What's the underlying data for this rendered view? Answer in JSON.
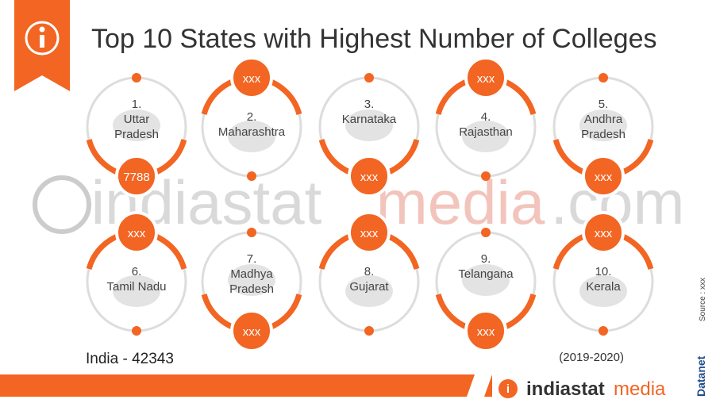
{
  "title": "Top 10 States with Highest Number of Colleges",
  "states": [
    {
      "rank": "1.",
      "name": "Uttar Pradesh",
      "value": "7788"
    },
    {
      "rank": "2.",
      "name": "Maharashtra",
      "value": "xxx"
    },
    {
      "rank": "3.",
      "name": "Karnataka",
      "value": "xxx"
    },
    {
      "rank": "4.",
      "name": "Rajasthan",
      "value": "xxx"
    },
    {
      "rank": "5.",
      "name": "Andhra Pradesh",
      "value": "xxx"
    },
    {
      "rank": "6.",
      "name": "Tamil Nadu",
      "value": "xxx"
    },
    {
      "rank": "7.",
      "name": "Madhya Pradesh",
      "value": "xxx"
    },
    {
      "rank": "8.",
      "name": "Gujarat",
      "value": "xxx"
    },
    {
      "rank": "9.",
      "name": "Telangana",
      "value": "xxx"
    },
    {
      "rank": "10.",
      "name": "Kerala",
      "value": "xxx"
    }
  ],
  "total": "India - 42343",
  "period": "(2019-2020)",
  "source": "Source : xxx",
  "brand": "Datanet",
  "watermark": {
    "part1": "indiastat",
    "part2": "media",
    "part3": ".com"
  },
  "footer_logo": {
    "part1": "indiastat",
    "part2": "media"
  }
}
